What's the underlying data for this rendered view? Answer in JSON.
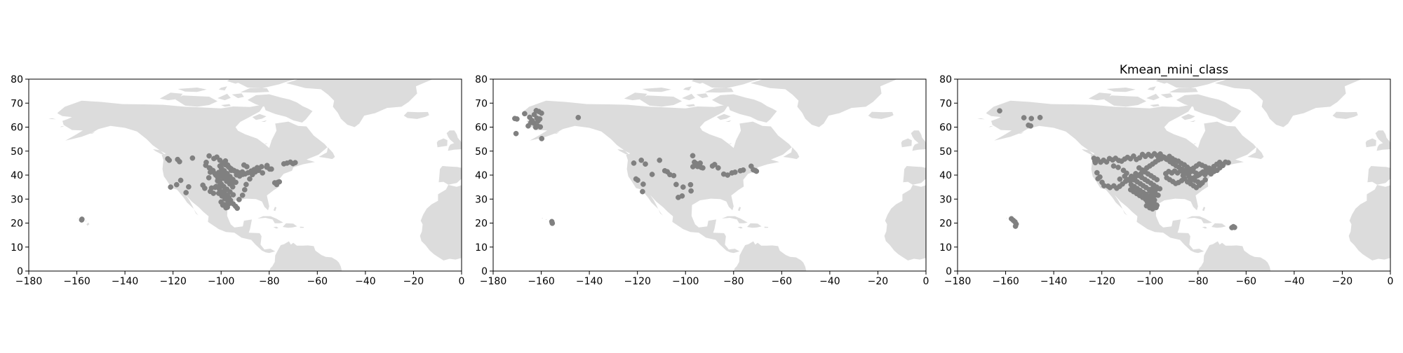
{
  "figure": {
    "background": "#ffffff"
  },
  "colors": {
    "land": "#dcdcdc",
    "points": "#808080",
    "axis": "#000000"
  },
  "chart_data": [
    {
      "type": "scatter",
      "title": "",
      "xlabel": "",
      "ylabel": "",
      "xlim": [
        -180,
        0
      ],
      "ylim": [
        0,
        80
      ],
      "xticks": [
        -180,
        -160,
        -140,
        -120,
        -100,
        -80,
        -60,
        -40,
        -20,
        0
      ],
      "yticks": [
        0,
        10,
        20,
        30,
        40,
        50,
        60,
        70,
        80
      ],
      "grid": false,
      "basemap": "land-grey",
      "series": [
        {
          "x": [
            -157.9,
            -158.0,
            -122.2,
            -121.6,
            -118.1,
            -117.3,
            -116.8,
            -113.5,
            -121.0,
            -118.5,
            -114.6,
            -111.9,
            -106.2,
            -104.9,
            -104.5,
            -105.1,
            -107.6,
            -106.8,
            -104.5,
            -103.2,
            -105.0,
            -106.4,
            -102.6,
            -101.4,
            -100.6,
            -99.9,
            -98.4,
            -97.3,
            -96.1,
            -95.0,
            -94.0,
            -93.3,
            -92.5,
            -91.1,
            -90.2,
            -89.6,
            -88.1,
            -87.0,
            -85.8,
            -84.4,
            -83.2,
            -82.8,
            -80.9,
            -79.1,
            -77.7,
            -76.9,
            -75.8,
            -73.9,
            -72.6,
            -71.2,
            -70.1,
            -69.2,
            -103.0,
            -101.8,
            -100.5,
            -99.4,
            -98.2,
            -97.0,
            -95.8,
            -94.6,
            -93.4,
            -92.2,
            -91.0,
            -99.9,
            -98.7,
            -97.5,
            -96.3,
            -95.1,
            -93.9,
            -100.3,
            -99.0,
            -97.7,
            -96.4,
            -95.2,
            -101.5,
            -100.2,
            -98.9,
            -97.6,
            -96.3,
            -95.0,
            -102.0,
            -100.7,
            -99.4,
            -98.1,
            -96.8,
            -101.0,
            -99.7,
            -98.4,
            -97.1,
            -100.0,
            -98.7,
            -97.4,
            -99.3,
            -98.0,
            -96.9,
            -104.0,
            -102.5,
            -101.0,
            -100.5,
            -99.3,
            -98.2,
            -97.3,
            -96.5,
            -95.8,
            -102.2,
            -101.0,
            -103.4,
            -104.6,
            -99.8,
            -98.6,
            -97.4,
            -96.2,
            -95.0,
            -93.6,
            -92.4,
            -91.2,
            -90.0,
            -88.8,
            -87.5,
            -86.3,
            -85.0,
            -90.5,
            -89.3,
            -94.7,
            -93.5,
            -92.3,
            -81.0,
            -79.8,
            -76.4
          ],
          "y": [
            21.6,
            21.3,
            46.8,
            46.2,
            46.5,
            45.6,
            37.8,
            35.1,
            35.0,
            36.0,
            32.7,
            47.1,
            45.3,
            43.0,
            41.2,
            38.9,
            35.8,
            34.5,
            33.2,
            32.4,
            48.0,
            44.1,
            40.6,
            39.1,
            37.7,
            36.2,
            33.6,
            31.4,
            29.5,
            28.0,
            27.0,
            26.2,
            29.8,
            31.6,
            33.9,
            36.1,
            38.4,
            40.2,
            41.3,
            42.0,
            43.5,
            40.9,
            44.0,
            42.5,
            36.8,
            36.1,
            37.2,
            44.7,
            45.0,
            45.4,
            44.8,
            45.2,
            46.9,
            47.5,
            46.2,
            45.1,
            44.3,
            43.5,
            42.6,
            41.9,
            41.4,
            40.8,
            40.3,
            42.9,
            41.8,
            40.6,
            39.4,
            38.2,
            37.0,
            39.8,
            38.6,
            37.4,
            36.3,
            35.1,
            37.6,
            36.4,
            35.2,
            34.1,
            33.0,
            31.8,
            35.3,
            34.2,
            33.0,
            31.9,
            30.7,
            32.4,
            31.3,
            30.1,
            29.0,
            28.8,
            27.7,
            26.6,
            27.5,
            26.4,
            27.9,
            34.6,
            34.9,
            35.4,
            43.8,
            44.9,
            45.9,
            44.2,
            43.1,
            42.0,
            40.0,
            41.1,
            41.9,
            42.8,
            41.4,
            40.2,
            39.1,
            38.0,
            36.9,
            40.1,
            40.9,
            41.3,
            40.5,
            41.0,
            41.7,
            42.3,
            43.1,
            44.2,
            43.5,
            41.9,
            40.7,
            39.6,
            43.3,
            42.5,
            37.0
          ]
        }
      ]
    },
    {
      "type": "scatter",
      "title": "",
      "xlabel": "",
      "ylabel": "",
      "xlim": [
        -180,
        0
      ],
      "ylim": [
        0,
        80
      ],
      "xticks": [
        -180,
        -160,
        -140,
        -120,
        -100,
        -80,
        -60,
        -40,
        -20,
        0
      ],
      "yticks": [
        0,
        10,
        20,
        30,
        40,
        50,
        60,
        70,
        80
      ],
      "grid": false,
      "basemap": "land-grey",
      "series": [
        {
          "x": [
            -171.0,
            -170.1,
            -170.5,
            -166.9,
            -165.4,
            -164.3,
            -163.7,
            -162.9,
            -162.1,
            -161.8,
            -161.3,
            -160.6,
            -164.8,
            -163.0,
            -161.5,
            -162.3,
            -160.4,
            -159.9,
            -161.0,
            -163.9,
            -159.8,
            -144.6,
            -155.6,
            -155.4,
            -121.5,
            -120.6,
            -119.9,
            -118.4,
            -117.6,
            -117.9,
            -116.7,
            -113.9,
            -110.8,
            -108.6,
            -107.6,
            -106.5,
            -104.9,
            -103.9,
            -103.0,
            -101.4,
            -101.0,
            -97.9,
            -97.7,
            -97.0,
            -96.3,
            -95.9,
            -95.0,
            -94.2,
            -93.5,
            -92.8,
            -93.9,
            -95.5,
            -96.9,
            -87.9,
            -88.8,
            -86.4,
            -84.1,
            -82.5,
            -80.7,
            -79.4,
            -77.2,
            -76.0,
            -72.7,
            -71.8,
            -71.0,
            -70.5
          ],
          "y": [
            63.6,
            63.4,
            57.3,
            65.6,
            60.5,
            61.9,
            62.4,
            65.2,
            66.9,
            63.7,
            62.6,
            63.4,
            64.1,
            61.6,
            60.5,
            59.9,
            60.1,
            65.8,
            66.5,
            62.8,
            55.2,
            64.0,
            20.6,
            19.9,
            45.0,
            38.4,
            37.9,
            46.2,
            36.2,
            33.1,
            44.6,
            40.3,
            46.2,
            41.8,
            41.4,
            40.2,
            39.8,
            36.1,
            30.7,
            31.3,
            35.0,
            36.0,
            33.4,
            48.1,
            45.4,
            44.7,
            43.6,
            44.1,
            43.2,
            43.0,
            45.0,
            44.8,
            43.5,
            44.4,
            43.8,
            43.0,
            40.4,
            40.0,
            40.9,
            41.2,
            41.8,
            42.1,
            43.7,
            42.2,
            41.9,
            41.6
          ]
        }
      ]
    },
    {
      "type": "scatter",
      "title": "Kmean_mini_class",
      "xlabel": "",
      "ylabel": "",
      "xlim": [
        -180,
        0
      ],
      "ylim": [
        0,
        80
      ],
      "xticks": [
        -180,
        -160,
        -140,
        -120,
        -100,
        -80,
        -60,
        -40,
        -20,
        0
      ],
      "yticks": [
        0,
        10,
        20,
        30,
        40,
        50,
        60,
        70,
        80
      ],
      "grid": false,
      "basemap": "land-grey",
      "series": [
        {
          "x": [
            -162.5,
            -152.4,
            -150.5,
            -149.6,
            -149.3,
            -145.7,
            -157.6,
            -156.8,
            -156.1,
            -155.6,
            -155.9,
            -65.9,
            -65.3,
            -64.8,
            -123.3,
            -122.7,
            -122.0,
            -121.6,
            -120.8,
            -119.9,
            -119.1,
            -117.4,
            -116.6,
            -115.0,
            -113.8,
            -112.6,
            -111.4,
            -110.1,
            -108.9,
            -107.7,
            -106.3,
            -105.0,
            -103.7,
            -102.5,
            -101.3,
            -100.1,
            -98.9,
            -97.7,
            -96.5,
            -95.3,
            -94.0,
            -92.8,
            -91.6,
            -90.4,
            -89.2,
            -88.0,
            -86.7,
            -85.5,
            -84.3,
            -83.1,
            -81.9,
            -80.7,
            -79.5,
            -78.3,
            -77.0,
            -75.8,
            -74.6,
            -73.4,
            -72.2,
            -71.0,
            -69.8,
            -68.6,
            -67.4,
            -122.9,
            -121.8,
            -120.5,
            -119.3,
            -118.0,
            -116.8,
            -115.5,
            -114.3,
            -113.0,
            -111.8,
            -110.5,
            -109.3,
            -108.1,
            -106.8,
            -105.6,
            -104.3,
            -103.1,
            -101.9,
            -100.6,
            -99.4,
            -98.1,
            -96.9,
            -95.7,
            -94.4,
            -93.2,
            -91.9,
            -90.7,
            -89.5,
            -88.2,
            -87.0,
            -85.7,
            -84.5,
            -83.3,
            -82.0,
            -80.8,
            -79.6,
            -78.3,
            -77.1,
            -75.8,
            -74.6,
            -73.4,
            -72.1,
            -70.9,
            -69.7,
            -104.5,
            -103.2,
            -102.0,
            -100.8,
            -99.5,
            -98.3,
            -97.1,
            -105.9,
            -104.6,
            -103.4,
            -102.1,
            -100.9,
            -99.6,
            -98.4,
            -97.2,
            -95.9,
            -106.5,
            -105.3,
            -104.0,
            -102.8,
            -101.6,
            -100.3,
            -99.1,
            -97.8,
            -96.6,
            -107.8,
            -106.5,
            -105.3,
            -104.1,
            -102.8,
            -101.6,
            -100.3,
            -99.1,
            -108.0,
            -106.8,
            -105.5,
            -104.3,
            -103.0,
            -101.8,
            -100.6,
            -99.3,
            -98.1,
            -102.0,
            -100.8,
            -99.6,
            -98.3,
            -97.1,
            -101.1,
            -99.8,
            -98.6,
            -97.4,
            -101.4,
            -100.1,
            -98.9,
            -97.6,
            -100.0,
            -98.8,
            -97.6,
            -99.3,
            -98.1,
            -98.6,
            -97.4,
            -93.0,
            -91.8,
            -90.5,
            -89.3,
            -88.1,
            -86.8,
            -85.6,
            -84.4,
            -83.1,
            -81.9,
            -80.7,
            -79.4,
            -78.2,
            -77.0,
            -93.4,
            -92.2,
            -90.9,
            -89.7,
            -88.5,
            -87.2,
            -86.0,
            -84.8,
            -83.5,
            -82.3,
            -84.0,
            -82.8,
            -81.6,
            -80.3,
            -79.1,
            -77.9,
            -76.6,
            -75.4,
            -86.2,
            -85.0,
            -83.7,
            -82.5,
            -81.3,
            -80.0,
            -78.8,
            -115.1,
            -113.2,
            -111.0,
            -109.7,
            -110.5,
            -112.5,
            -108.2
          ],
          "y": [
            66.8,
            63.9,
            60.8,
            60.5,
            63.6,
            64.0,
            21.8,
            21.1,
            20.5,
            19.6,
            18.7,
            18.1,
            18.5,
            18.2,
            47.0,
            45.2,
            41.0,
            38.5,
            39.2,
            37.0,
            35.6,
            35.4,
            34.8,
            35.5,
            34.5,
            35.3,
            36.3,
            37.4,
            38.2,
            39.5,
            38.7,
            39.9,
            40.6,
            41.9,
            43.0,
            43.8,
            44.6,
            45.5,
            46.3,
            46.8,
            47.4,
            46.5,
            45.6,
            44.8,
            44.0,
            43.3,
            42.5,
            42.0,
            41.5,
            42.0,
            42.9,
            43.8,
            44.6,
            44.1,
            43.5,
            42.8,
            42.2,
            43.6,
            44.5,
            45.3,
            44.4,
            45.4,
            45.2,
            45.9,
            46.6,
            45.4,
            46.2,
            45.5,
            46.9,
            46.3,
            47.0,
            46.1,
            45.8,
            46.7,
            47.4,
            46.8,
            47.9,
            46.5,
            47.2,
            48.6,
            47.8,
            48.6,
            47.9,
            48.9,
            48.1,
            48.8,
            47.6,
            46.7,
            47.8,
            46.9,
            46.2,
            45.8,
            44.9,
            44.3,
            43.3,
            42.4,
            41.6,
            40.8,
            40.1,
            41.0,
            40.2,
            41.2,
            40.5,
            41.5,
            42.0,
            43.1,
            44.0,
            43.0,
            42.1,
            41.3,
            40.5,
            39.7,
            38.9,
            38.1,
            40.6,
            39.8,
            39.0,
            38.2,
            37.4,
            36.6,
            35.8,
            35.0,
            34.3,
            38.0,
            37.2,
            36.4,
            35.6,
            34.8,
            34.0,
            33.2,
            32.4,
            31.6,
            36.0,
            35.2,
            34.4,
            33.6,
            32.8,
            32.0,
            31.2,
            30.4,
            33.9,
            33.1,
            32.3,
            31.5,
            30.7,
            29.9,
            29.1,
            28.3,
            27.5,
            30.6,
            29.8,
            29.0,
            28.2,
            27.4,
            28.9,
            28.1,
            27.3,
            26.5,
            27.2,
            26.4,
            25.9,
            27.7,
            33.3,
            32.5,
            31.7,
            30.4,
            29.6,
            34.9,
            34.1,
            38.9,
            38.1,
            37.3,
            36.5,
            36.9,
            37.7,
            38.5,
            37.2,
            36.4,
            35.6,
            34.8,
            35.7,
            36.8,
            38.0,
            40.6,
            41.5,
            40.9,
            41.7,
            40.9,
            41.8,
            40.9,
            41.9,
            41.1,
            42.0,
            37.3,
            38.1,
            38.9,
            39.7,
            40.5,
            41.3,
            42.1,
            42.9,
            39.8,
            40.6,
            39.4,
            38.6,
            37.8,
            37.1,
            36.3,
            43.8,
            43.2,
            42.0,
            40.8,
            39.5,
            38.3,
            37.6
          ]
        }
      ]
    }
  ]
}
